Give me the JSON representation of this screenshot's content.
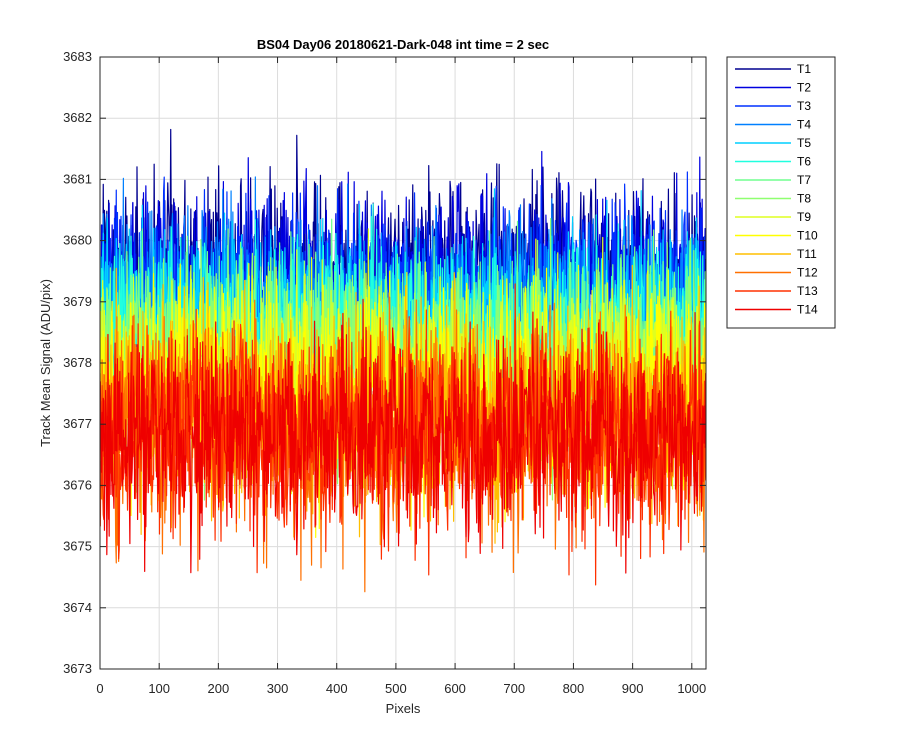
{
  "chart_data": {
    "type": "line",
    "title": "BS04 Day06 20180621-Dark-048 int time = 2 sec",
    "xlabel": "Pixels",
    "ylabel": "Track Mean Signal (ADU/pix)",
    "xlim": [
      0,
      1024
    ],
    "ylim": [
      3673,
      3683
    ],
    "xticks": [
      0,
      100,
      200,
      300,
      400,
      500,
      600,
      700,
      800,
      900,
      1000
    ],
    "yticks": [
      3673,
      3674,
      3675,
      3676,
      3677,
      3678,
      3679,
      3680,
      3681,
      3682,
      3683
    ],
    "grid": true,
    "legend_position": "outside-top-right",
    "series": [
      {
        "name": "T1",
        "color": "#00008f",
        "mean": 3679.5,
        "noise": 0.75
      },
      {
        "name": "T2",
        "color": "#0000df",
        "mean": 3679.3,
        "noise": 0.75
      },
      {
        "name": "T3",
        "color": "#0030ff",
        "mean": 3679.1,
        "noise": 0.75
      },
      {
        "name": "T4",
        "color": "#0080ff",
        "mean": 3678.9,
        "noise": 0.75
      },
      {
        "name": "T5",
        "color": "#00cfff",
        "mean": 3678.7,
        "noise": 0.75
      },
      {
        "name": "T6",
        "color": "#20ffdf",
        "mean": 3678.5,
        "noise": 0.75
      },
      {
        "name": "T7",
        "color": "#70ff8f",
        "mean": 3678.2,
        "noise": 0.8
      },
      {
        "name": "T8",
        "color": "#8fff70",
        "mean": 3678.0,
        "noise": 0.8
      },
      {
        "name": "T9",
        "color": "#dfff20",
        "mean": 3677.8,
        "noise": 0.8
      },
      {
        "name": "T10",
        "color": "#ffff00",
        "mean": 3677.5,
        "noise": 0.85
      },
      {
        "name": "T11",
        "color": "#ffbf00",
        "mean": 3677.2,
        "noise": 0.85
      },
      {
        "name": "T12",
        "color": "#ff7000",
        "mean": 3676.9,
        "noise": 0.85
      },
      {
        "name": "T13",
        "color": "#ff3000",
        "mean": 3676.8,
        "noise": 0.85
      },
      {
        "name": "T14",
        "color": "#ef0000",
        "mean": 3676.8,
        "noise": 0.8
      }
    ]
  }
}
